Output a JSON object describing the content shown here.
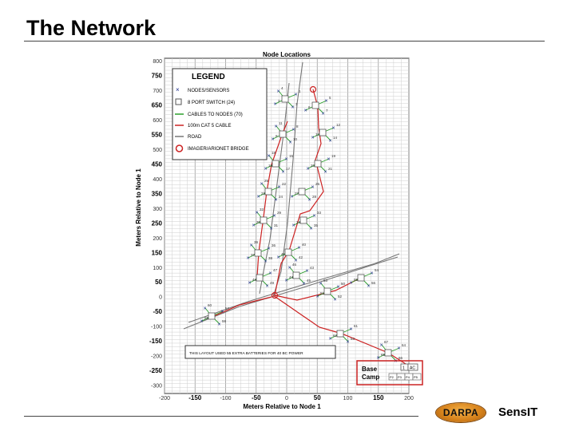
{
  "slide": {
    "title": "The Network",
    "brand": "SensIT"
  },
  "logo": {
    "text": "DARPA",
    "color": "#d7831c"
  },
  "figure": {
    "title": "Node Locations",
    "xlabel": "Meters Relative to Node 1",
    "ylabel": "Meters Relative to Node 1",
    "xticks": [
      "-200",
      "-150",
      "-100",
      "-50",
      "0",
      "50",
      "100",
      "150",
      "200"
    ],
    "yticks": [
      "800",
      "750",
      "700",
      "650",
      "600",
      "550",
      "500",
      "450",
      "400",
      "350",
      "300",
      "250",
      "200",
      "150",
      "100",
      "50",
      "0",
      "-50",
      "-100",
      "-150",
      "-200",
      "-250",
      "-300"
    ],
    "legend": {
      "title": "LEGEND",
      "items": [
        {
          "label": "NODES/SENSORS"
        },
        {
          "label": "8 PORT SWITCH  (24)"
        },
        {
          "label": "CABLES TO NODES  (70)"
        },
        {
          "label": "100m CAT 5 CABLE"
        },
        {
          "label": "ROAD"
        },
        {
          "label": "IMAGER/ARIONET BRIDGE"
        }
      ]
    },
    "note": "THIS LAYOUT USED 55 EXTRA BATTERIES FOR 40 BC POWER",
    "base_camp": {
      "label": "Base Camp",
      "box_labels": [
        "1",
        "AC",
        "P2",
        "P3",
        "P4",
        "P5"
      ]
    },
    "colors": {
      "node": "#1a2a8a",
      "switch": "#555555",
      "cable": "#2aa02a",
      "cat5": "#cc2222",
      "road": "#777777",
      "bridge": "#cc2222"
    },
    "node_labels": [
      "1",
      "2",
      "3",
      "4",
      "5",
      "6",
      "7",
      "8",
      "9",
      "10",
      "11",
      "12",
      "13",
      "14",
      "15",
      "16",
      "17",
      "18",
      "19",
      "20",
      "21",
      "22",
      "23",
      "24",
      "25",
      "26",
      "27",
      "28",
      "29",
      "30",
      "31",
      "32",
      "33",
      "34",
      "35",
      "36",
      "37",
      "38",
      "39",
      "40",
      "41",
      "42",
      "43",
      "44",
      "45",
      "46",
      "47",
      "48",
      "49",
      "50",
      "51",
      "52",
      "53",
      "54",
      "55",
      "56",
      "57",
      "58",
      "59",
      "60",
      "61",
      "62",
      "63",
      "64",
      "65",
      "66",
      "67",
      "68",
      "69",
      "70"
    ]
  }
}
